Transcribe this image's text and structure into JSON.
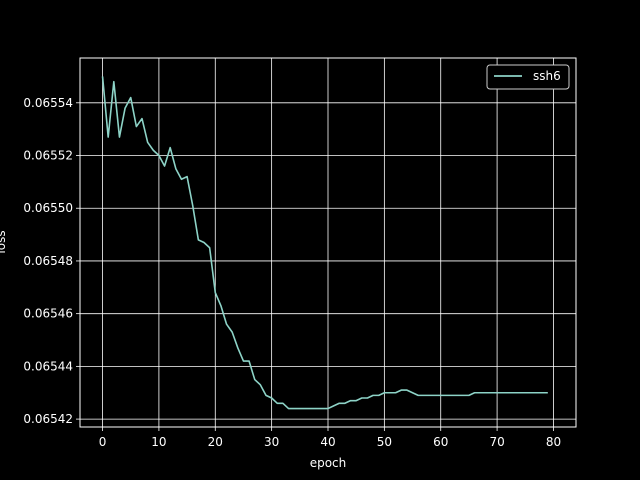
{
  "chart_data": {
    "type": "line",
    "xlabel": "epoch",
    "ylabel": "loss",
    "xlim": [
      -4,
      84
    ],
    "ylim": [
      0.065417,
      0.065557
    ],
    "xticks": [
      0,
      10,
      20,
      30,
      40,
      50,
      60,
      70,
      80
    ],
    "xtick_labels": [
      "0",
      "10",
      "20",
      "30",
      "40",
      "50",
      "60",
      "70",
      "80"
    ],
    "yticks": [
      0.06542,
      0.06544,
      0.06546,
      0.06548,
      0.0655,
      0.06552,
      0.06554
    ],
    "ytick_labels": [
      "0.06542",
      "0.06544",
      "0.06546",
      "0.06548",
      "0.06550",
      "0.06552",
      "0.06554"
    ],
    "grid": true,
    "legend_position": "top-right",
    "colors": {
      "background": "#000000",
      "axes": "#ffffff",
      "grid": "#ffffff",
      "series": "#8dd3c7"
    },
    "series": [
      {
        "name": "ssh6",
        "x": [
          0,
          1,
          2,
          3,
          4,
          5,
          6,
          7,
          8,
          9,
          10,
          11,
          12,
          13,
          14,
          15,
          16,
          17,
          18,
          19,
          20,
          21,
          22,
          23,
          24,
          25,
          26,
          27,
          28,
          29,
          30,
          31,
          32,
          33,
          34,
          35,
          36,
          37,
          38,
          39,
          40,
          41,
          42,
          43,
          44,
          45,
          46,
          47,
          48,
          49,
          50,
          51,
          52,
          53,
          54,
          55,
          56,
          57,
          58,
          59,
          60,
          61,
          62,
          63,
          64,
          65,
          66,
          67,
          68,
          69,
          70,
          71,
          72,
          73,
          74,
          75,
          76,
          77,
          78,
          79
        ],
        "y": [
          0.06555,
          0.065527,
          0.065548,
          0.065527,
          0.065538,
          0.065542,
          0.065531,
          0.065534,
          0.065525,
          0.065522,
          0.06552,
          0.065516,
          0.065523,
          0.065515,
          0.065511,
          0.065512,
          0.065501,
          0.065488,
          0.065487,
          0.065485,
          0.065468,
          0.065463,
          0.065456,
          0.065453,
          0.065447,
          0.065442,
          0.065442,
          0.065435,
          0.065433,
          0.065429,
          0.065428,
          0.065426,
          0.065426,
          0.065424,
          0.065424,
          0.065424,
          0.065424,
          0.065424,
          0.065424,
          0.065424,
          0.065424,
          0.065425,
          0.065426,
          0.065426,
          0.065427,
          0.065427,
          0.065428,
          0.065428,
          0.065429,
          0.065429,
          0.06543,
          0.06543,
          0.06543,
          0.065431,
          0.065431,
          0.06543,
          0.065429,
          0.065429,
          0.065429,
          0.065429,
          0.065429,
          0.065429,
          0.065429,
          0.065429,
          0.065429,
          0.065429,
          0.06543,
          0.06543,
          0.06543,
          0.06543,
          0.06543,
          0.06543,
          0.06543,
          0.06543,
          0.06543,
          0.06543,
          0.06543,
          0.06543,
          0.06543,
          0.06543
        ]
      }
    ]
  }
}
